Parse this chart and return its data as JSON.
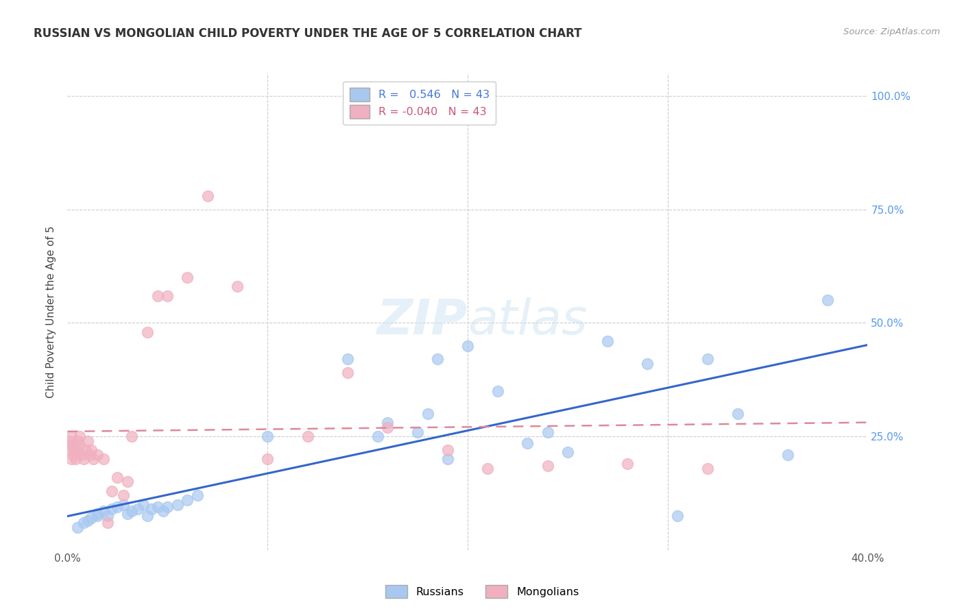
{
  "title": "RUSSIAN VS MONGOLIAN CHILD POVERTY UNDER THE AGE OF 5 CORRELATION CHART",
  "source": "Source: ZipAtlas.com",
  "ylabel": "Child Poverty Under the Age of 5",
  "xlim": [
    0.0,
    0.4
  ],
  "ylim": [
    0.0,
    1.05
  ],
  "russian_color": "#a8c8f0",
  "mongolian_color": "#f0b0c0",
  "russian_line_color": "#3366cc",
  "mongolian_line_color": "#dd8899",
  "watermark_color": "#d0e4f4",
  "russians_x": [
    0.005,
    0.008,
    0.01,
    0.012,
    0.015,
    0.015,
    0.018,
    0.02,
    0.022,
    0.025,
    0.028,
    0.03,
    0.032,
    0.035,
    0.038,
    0.04,
    0.042,
    0.045,
    0.048,
    0.05,
    0.055,
    0.06,
    0.065,
    0.1,
    0.14,
    0.155,
    0.16,
    0.175,
    0.18,
    0.185,
    0.19,
    0.2,
    0.215,
    0.23,
    0.24,
    0.25,
    0.27,
    0.29,
    0.305,
    0.32,
    0.335,
    0.36,
    0.38
  ],
  "russians_y": [
    0.05,
    0.06,
    0.065,
    0.07,
    0.075,
    0.08,
    0.085,
    0.075,
    0.09,
    0.095,
    0.1,
    0.08,
    0.085,
    0.09,
    0.1,
    0.075,
    0.09,
    0.095,
    0.085,
    0.095,
    0.1,
    0.11,
    0.12,
    0.25,
    0.42,
    0.25,
    0.28,
    0.26,
    0.3,
    0.42,
    0.2,
    0.45,
    0.35,
    0.235,
    0.26,
    0.215,
    0.46,
    0.41,
    0.075,
    0.42,
    0.3,
    0.21,
    0.55
  ],
  "mongolians_x": [
    0.001,
    0.001,
    0.002,
    0.002,
    0.002,
    0.003,
    0.003,
    0.004,
    0.004,
    0.005,
    0.005,
    0.006,
    0.006,
    0.007,
    0.008,
    0.009,
    0.01,
    0.011,
    0.012,
    0.013,
    0.015,
    0.018,
    0.02,
    0.022,
    0.025,
    0.028,
    0.03,
    0.032,
    0.04,
    0.045,
    0.05,
    0.06,
    0.07,
    0.085,
    0.1,
    0.12,
    0.14,
    0.16,
    0.19,
    0.21,
    0.24,
    0.28,
    0.32
  ],
  "mongolians_y": [
    0.23,
    0.24,
    0.2,
    0.22,
    0.25,
    0.21,
    0.23,
    0.2,
    0.22,
    0.215,
    0.24,
    0.25,
    0.23,
    0.21,
    0.2,
    0.22,
    0.24,
    0.21,
    0.22,
    0.2,
    0.21,
    0.2,
    0.06,
    0.13,
    0.16,
    0.12,
    0.15,
    0.25,
    0.48,
    0.56,
    0.56,
    0.6,
    0.78,
    0.58,
    0.2,
    0.25,
    0.39,
    0.27,
    0.22,
    0.18,
    0.185,
    0.19,
    0.18
  ]
}
